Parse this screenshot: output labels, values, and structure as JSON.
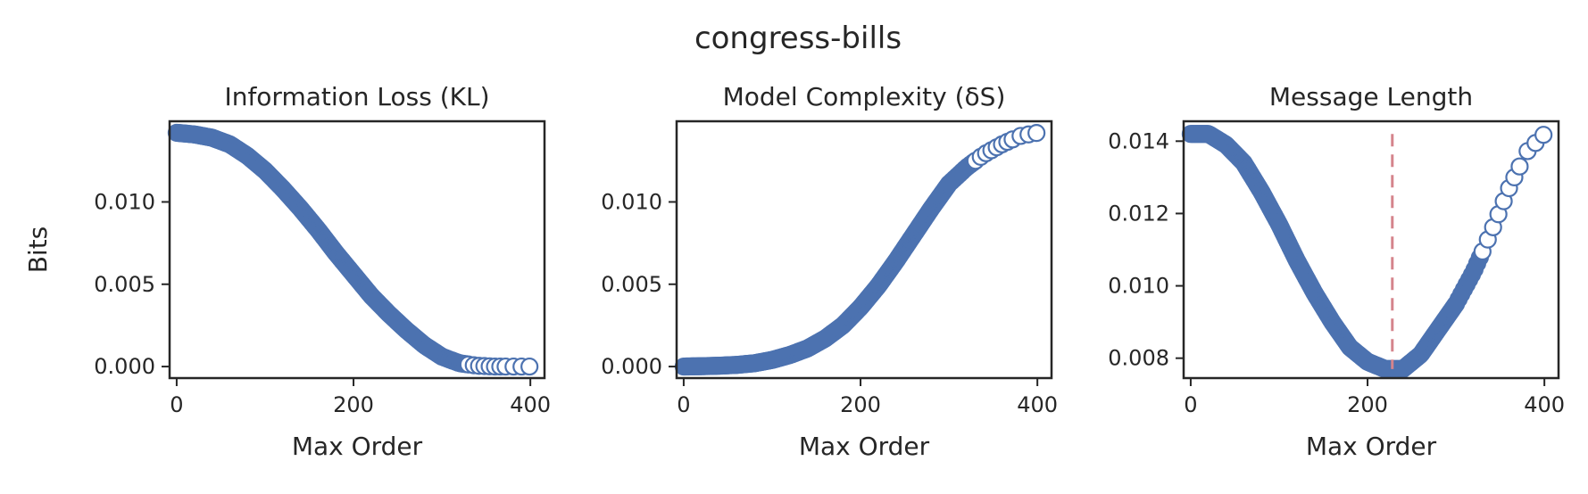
{
  "figure": {
    "title": "congress-bills",
    "point_color": "#4c72b0",
    "point_edge_color": "#4c72b0",
    "point_face_color_late": "#ffffff",
    "reference_line_color": "#d5848c"
  },
  "chart_data": [
    {
      "type": "scatter",
      "title": "Information Loss (KL)",
      "xlabel": "Max Order",
      "ylabel": "Bits",
      "xlim": [
        -8,
        416
      ],
      "ylim": [
        -0.0007,
        0.0149
      ],
      "xticks": [
        0,
        200,
        400
      ],
      "xtick_labels": [
        "0",
        "200",
        "400"
      ],
      "yticks": [
        0,
        0.005,
        0.01
      ],
      "ytick_labels": [
        "0.000",
        "0.005",
        "0.010"
      ],
      "grid": false,
      "legend": "none",
      "curve": "Information loss falls from about 0.0142 bits at Max Order 0 toward 0 by about Max Order 340",
      "x": [
        0,
        20,
        40,
        60,
        80,
        100,
        120,
        140,
        160,
        180,
        200,
        220,
        240,
        260,
        280,
        300,
        320,
        340,
        360,
        380,
        400
      ],
      "y": [
        0.0142,
        0.0141,
        0.0139,
        0.0135,
        0.0128,
        0.0119,
        0.0108,
        0.0096,
        0.0083,
        0.0069,
        0.0056,
        0.0043,
        0.0032,
        0.0022,
        0.0013,
        0.0006,
        0.0002,
        5e-05,
        0.0,
        0.0,
        0.0
      ]
    },
    {
      "type": "scatter",
      "title": "Model Complexity (δS)",
      "xlabel": "Max Order",
      "ylabel": "",
      "xlim": [
        -8,
        416
      ],
      "ylim": [
        -0.0007,
        0.0149
      ],
      "xticks": [
        0,
        200,
        400
      ],
      "xtick_labels": [
        "0",
        "200",
        "400"
      ],
      "yticks": [
        0,
        0.005,
        0.01
      ],
      "ytick_labels": [
        "0.000",
        "0.005",
        "0.010"
      ],
      "grid": false,
      "legend": "none",
      "curve": "Model complexity rises from about 0 bits at Max Order 0 to about 0.0142 bits at Max Order 400",
      "x": [
        0,
        20,
        40,
        60,
        80,
        100,
        120,
        140,
        160,
        180,
        200,
        220,
        240,
        260,
        280,
        300,
        320,
        340,
        360,
        380,
        400
      ],
      "y": [
        0.0,
        2e-05,
        5e-05,
        0.0001,
        0.0002,
        0.0004,
        0.0007,
        0.0011,
        0.0017,
        0.0025,
        0.0036,
        0.0049,
        0.0064,
        0.008,
        0.0096,
        0.0111,
        0.0121,
        0.0129,
        0.0135,
        0.014,
        0.0142
      ]
    },
    {
      "type": "scatter",
      "title": "Message Length",
      "xlabel": "Max Order",
      "ylabel": "",
      "xlim": [
        -8,
        416
      ],
      "ylim": [
        0.00745,
        0.01455
      ],
      "xticks": [
        0,
        200,
        400
      ],
      "xtick_labels": [
        "0",
        "200",
        "400"
      ],
      "yticks": [
        0.008,
        0.01,
        0.012,
        0.014
      ],
      "ytick_labels": [
        "0.008",
        "0.010",
        "0.012",
        "0.014"
      ],
      "grid": false,
      "legend": "none",
      "curve": "Message length falls from about 0.0142 bits to a minimum of about 0.0077 bits near Max Order 228, then rises back to about 0.0142 bits at Max Order 400",
      "x": [
        0,
        20,
        40,
        60,
        80,
        100,
        120,
        140,
        160,
        180,
        200,
        220,
        228,
        240,
        260,
        280,
        300,
        320,
        340,
        360,
        380,
        400
      ],
      "y": [
        0.0142,
        0.0142,
        0.0139,
        0.0134,
        0.0126,
        0.0117,
        0.0107,
        0.0098,
        0.009,
        0.0083,
        0.0079,
        0.0077,
        0.0077,
        0.0077,
        0.0081,
        0.0088,
        0.0095,
        0.0104,
        0.0115,
        0.0127,
        0.0137,
        0.0142
      ],
      "reference_line": {
        "x": 228,
        "y_from": 0.0077,
        "y_to": 0.0142,
        "style": "dashed"
      }
    }
  ]
}
